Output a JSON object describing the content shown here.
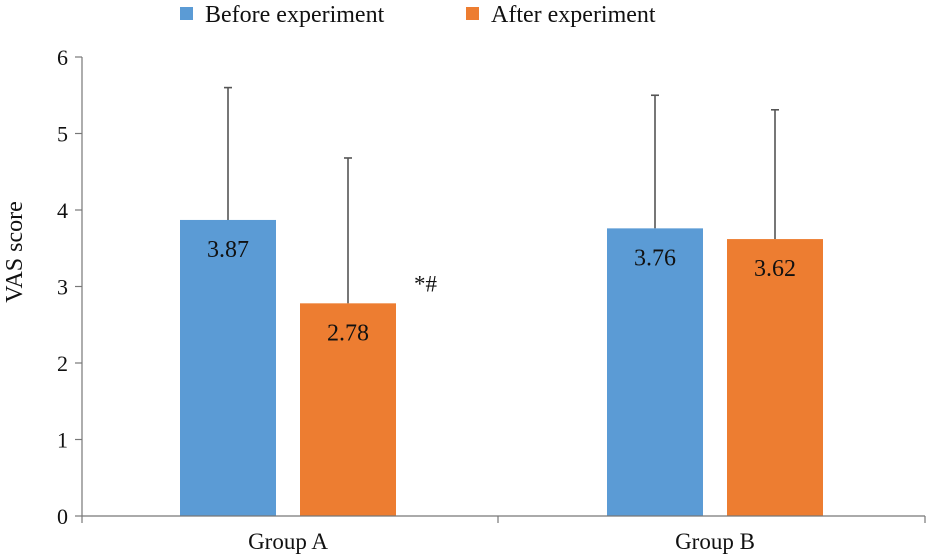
{
  "chart_data": {
    "type": "bar",
    "title": "",
    "xlabel": "",
    "ylabel": "VAS score",
    "ylim": [
      0,
      6
    ],
    "yticks": [
      0,
      1,
      2,
      3,
      4,
      5,
      6
    ],
    "categories": [
      "Group A",
      "Group B"
    ],
    "series": [
      {
        "name": "Before experiment",
        "color": "#5B9BD5",
        "values": [
          3.87,
          3.76
        ],
        "error_upper": [
          5.6,
          5.5
        ],
        "labels": [
          "3.87",
          "3.76"
        ]
      },
      {
        "name": "After experiment",
        "color": "#ED7D31",
        "values": [
          2.78,
          3.62
        ],
        "error_upper": [
          4.68,
          5.31
        ],
        "labels": [
          "2.78",
          "3.62"
        ]
      }
    ],
    "annotations": [
      {
        "category": "Group A",
        "series": "After experiment",
        "text": "*#"
      }
    ],
    "legend_position": "top-center"
  }
}
